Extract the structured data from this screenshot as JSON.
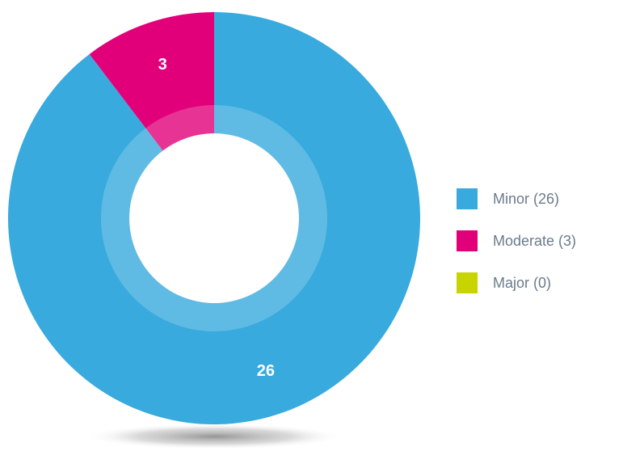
{
  "chart_data": {
    "type": "donut",
    "categories": [
      "Minor (26)",
      "Moderate (3)",
      "Major (0)"
    ],
    "values": [
      26,
      3,
      0
    ],
    "colors": [
      "#38aadd",
      "#e2007a",
      "#c8d400"
    ]
  }
}
